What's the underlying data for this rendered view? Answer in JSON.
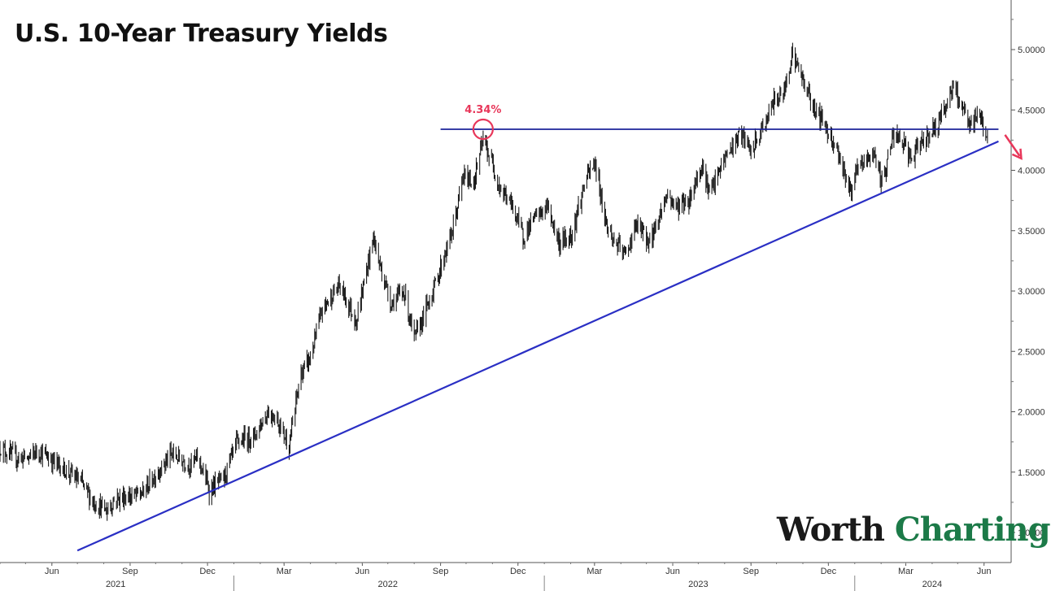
{
  "chart_data": {
    "type": "candlestick-line",
    "title": "U.S. 10-Year Treasury Yields",
    "xlabel": "",
    "ylabel": "",
    "ylim": [
      0.75,
      5.4
    ],
    "y_ticks": [
      "1.0000",
      "1.5000",
      "2.0000",
      "2.5000",
      "3.0000",
      "3.5000",
      "4.0000",
      "4.5000",
      "5.0000"
    ],
    "x_start": "2021-04-01",
    "x_end": "2024-06-30",
    "x_ticks": [
      {
        "date": "2021-06-01",
        "label": "Jun"
      },
      {
        "date": "2021-09-01",
        "label": "Sep"
      },
      {
        "date": "2021-12-01",
        "label": "Dec"
      },
      {
        "date": "2022-03-01",
        "label": "Mar"
      },
      {
        "date": "2022-06-01",
        "label": "Jun"
      },
      {
        "date": "2022-09-01",
        "label": "Sep"
      },
      {
        "date": "2022-12-01",
        "label": "Dec"
      },
      {
        "date": "2023-03-01",
        "label": "Mar"
      },
      {
        "date": "2023-06-01",
        "label": "Jun"
      },
      {
        "date": "2023-09-01",
        "label": "Sep"
      },
      {
        "date": "2023-12-01",
        "label": "Dec"
      },
      {
        "date": "2024-03-01",
        "label": "Mar"
      },
      {
        "date": "2024-06-01",
        "label": "Jun"
      }
    ],
    "years": [
      {
        "label": "2021",
        "center": "2021-08-15"
      },
      {
        "label": "2022",
        "center": "2022-07-01"
      },
      {
        "label": "2023",
        "center": "2023-07-01"
      },
      {
        "label": "2024",
        "center": "2024-04-01"
      }
    ],
    "year_dividers": [
      "2022-01-01",
      "2023-01-01",
      "2024-01-01"
    ],
    "series": [
      {
        "values": [
          [
            "2021-04-01",
            1.7
          ],
          [
            "2021-04-20",
            1.62
          ],
          [
            "2021-05-05",
            1.62
          ],
          [
            "2021-05-15",
            1.68
          ],
          [
            "2021-06-01",
            1.6
          ],
          [
            "2021-06-20",
            1.5
          ],
          [
            "2021-07-05",
            1.42
          ],
          [
            "2021-07-20",
            1.25
          ],
          [
            "2021-08-04",
            1.18
          ],
          [
            "2021-08-15",
            1.28
          ],
          [
            "2021-09-01",
            1.3
          ],
          [
            "2021-09-15",
            1.32
          ],
          [
            "2021-10-01",
            1.48
          ],
          [
            "2021-10-20",
            1.65
          ],
          [
            "2021-11-10",
            1.56
          ],
          [
            "2021-11-20",
            1.62
          ],
          [
            "2021-12-03",
            1.35
          ],
          [
            "2021-12-20",
            1.45
          ],
          [
            "2022-01-05",
            1.75
          ],
          [
            "2022-01-25",
            1.8
          ],
          [
            "2022-02-10",
            2.0
          ],
          [
            "2022-02-20",
            1.95
          ],
          [
            "2022-03-07",
            1.72
          ],
          [
            "2022-03-20",
            2.3
          ],
          [
            "2022-04-01",
            2.45
          ],
          [
            "2022-04-15",
            2.85
          ],
          [
            "2022-05-05",
            3.05
          ],
          [
            "2022-05-25",
            2.75
          ],
          [
            "2022-06-14",
            3.45
          ],
          [
            "2022-06-20",
            3.25
          ],
          [
            "2022-07-05",
            2.9
          ],
          [
            "2022-07-20",
            3.0
          ],
          [
            "2022-08-01",
            2.6
          ],
          [
            "2022-08-15",
            2.85
          ],
          [
            "2022-08-30",
            3.15
          ],
          [
            "2022-09-15",
            3.5
          ],
          [
            "2022-09-28",
            3.95
          ],
          [
            "2022-10-10",
            3.9
          ],
          [
            "2022-10-21",
            4.25
          ],
          [
            "2022-11-01",
            4.05
          ],
          [
            "2022-11-10",
            3.85
          ],
          [
            "2022-11-25",
            3.7
          ],
          [
            "2022-12-07",
            3.45
          ],
          [
            "2022-12-20",
            3.6
          ],
          [
            "2023-01-05",
            3.7
          ],
          [
            "2023-01-18",
            3.4
          ],
          [
            "2023-02-01",
            3.45
          ],
          [
            "2023-02-20",
            3.95
          ],
          [
            "2023-03-02",
            4.05
          ],
          [
            "2023-03-15",
            3.55
          ],
          [
            "2023-03-25",
            3.4
          ],
          [
            "2023-04-06",
            3.3
          ],
          [
            "2023-04-20",
            3.55
          ],
          [
            "2023-05-05",
            3.4
          ],
          [
            "2023-05-25",
            3.8
          ],
          [
            "2023-06-05",
            3.7
          ],
          [
            "2023-06-20",
            3.75
          ],
          [
            "2023-07-05",
            4.05
          ],
          [
            "2023-07-15",
            3.8
          ],
          [
            "2023-08-01",
            4.1
          ],
          [
            "2023-08-20",
            4.3
          ],
          [
            "2023-09-01",
            4.15
          ],
          [
            "2023-09-15",
            4.35
          ],
          [
            "2023-09-30",
            4.6
          ],
          [
            "2023-10-10",
            4.65
          ],
          [
            "2023-10-19",
            4.98
          ],
          [
            "2023-11-01",
            4.75
          ],
          [
            "2023-11-12",
            4.55
          ],
          [
            "2023-11-25",
            4.4
          ],
          [
            "2023-12-10",
            4.2
          ],
          [
            "2023-12-27",
            3.82
          ],
          [
            "2024-01-05",
            4.02
          ],
          [
            "2024-01-25",
            4.15
          ],
          [
            "2024-02-01",
            3.88
          ],
          [
            "2024-02-15",
            4.28
          ],
          [
            "2024-02-25",
            4.25
          ],
          [
            "2024-03-08",
            4.08
          ],
          [
            "2024-03-20",
            4.25
          ],
          [
            "2024-04-05",
            4.35
          ],
          [
            "2024-04-25",
            4.68
          ],
          [
            "2024-05-05",
            4.55
          ],
          [
            "2024-05-15",
            4.35
          ],
          [
            "2024-05-25",
            4.48
          ],
          [
            "2024-06-05",
            4.28
          ]
        ],
        "color": "#1a1a1a"
      }
    ],
    "annotations": {
      "resistance": {
        "value": 4.34,
        "from": "2022-09-01",
        "to": "2024-06-18",
        "color": "#1c2399"
      },
      "trendline": {
        "from": [
          "2021-07-01",
          0.85
        ],
        "to": [
          "2024-06-18",
          4.24
        ],
        "color": "#2a2fc4"
      },
      "highlight": {
        "date": "2022-10-21",
        "value": 4.34,
        "label": "4.34%",
        "color": "#e8375a"
      },
      "arrow": {
        "color": "#e8375a"
      }
    },
    "grid": false,
    "legend": "none"
  },
  "watermark": {
    "part1": "Worth",
    "part2": "Charting"
  }
}
